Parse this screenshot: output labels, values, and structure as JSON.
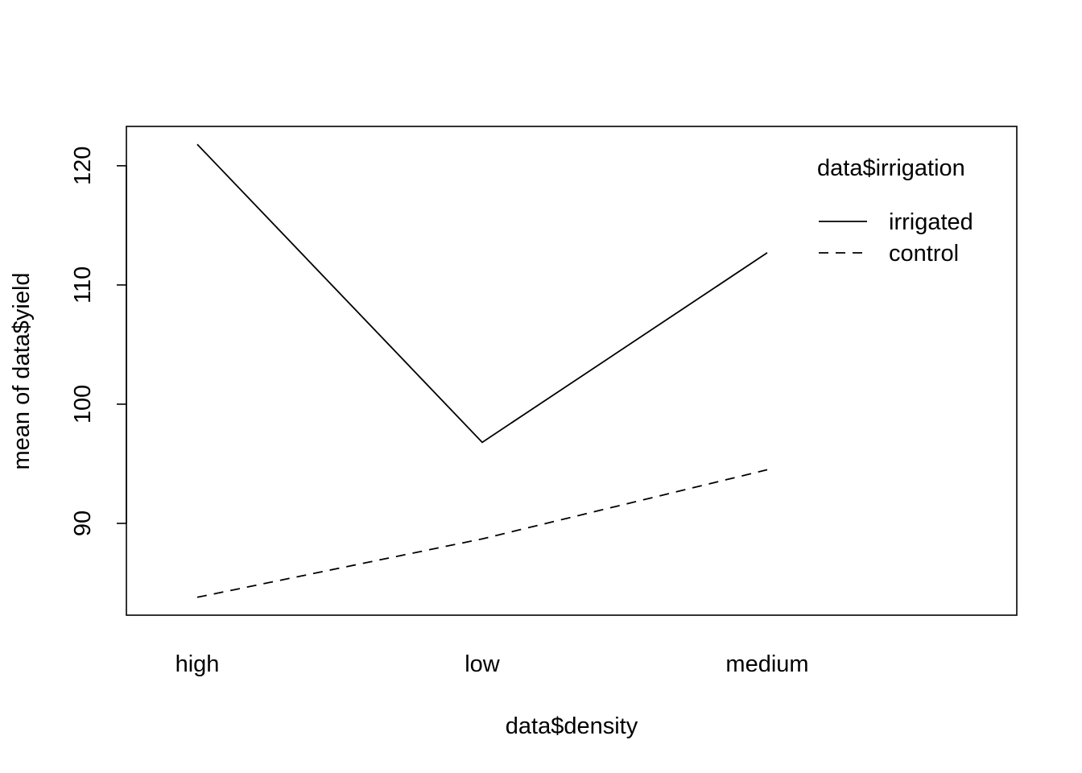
{
  "chart_data": {
    "type": "line",
    "title": "",
    "xlabel": "data$density",
    "ylabel": "mean of  data$yield",
    "categories": [
      "high",
      "low",
      "medium"
    ],
    "ylim": [
      82.3,
      123.3
    ],
    "yticks": [
      90,
      100,
      110,
      120
    ],
    "grid": false,
    "legend": {
      "title": "data$irrigation",
      "position": "top-right",
      "entries": [
        "irrigated",
        "control"
      ]
    },
    "series": [
      {
        "name": "irrigated",
        "values": [
          121.8,
          96.8,
          112.7
        ],
        "line_style": "solid"
      },
      {
        "name": "control",
        "values": [
          83.8,
          88.7,
          94.5
        ],
        "line_style": "dashed"
      }
    ]
  }
}
